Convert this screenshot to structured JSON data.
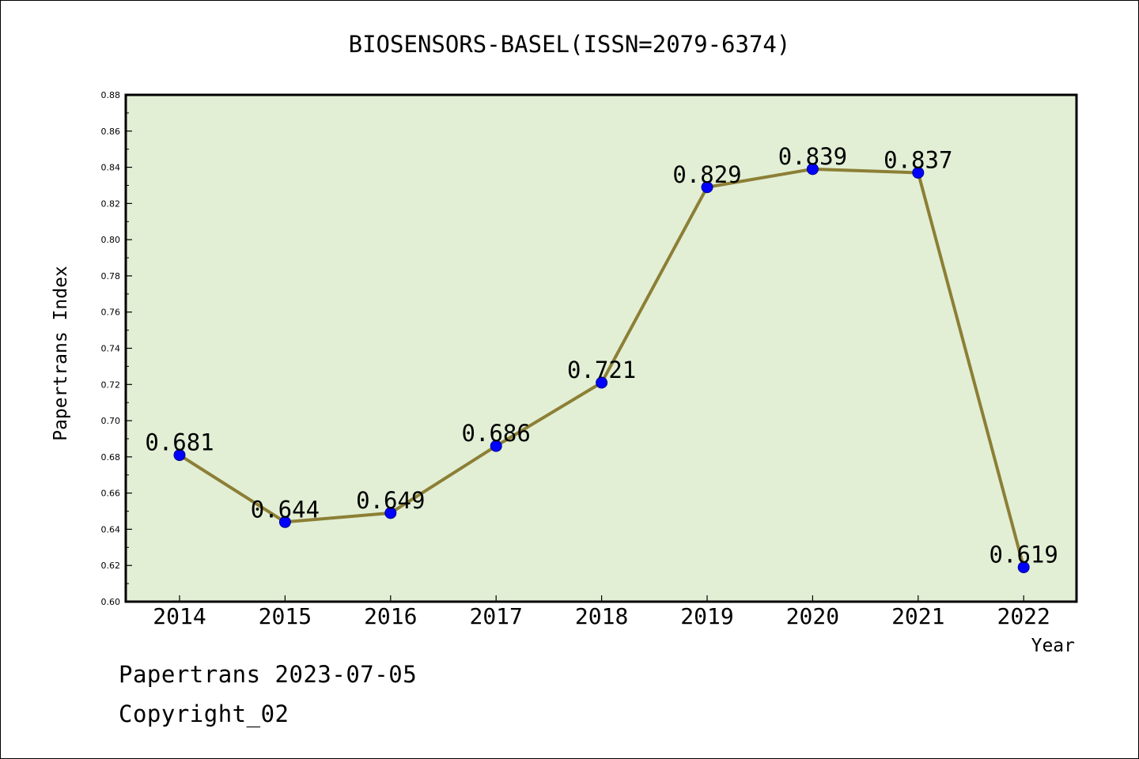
{
  "chart_data": {
    "type": "line",
    "title": "BIOSENSORS-BASEL(ISSN=2079-6374)",
    "xlabel": "Year",
    "ylabel": "Papertrans Index",
    "categories": [
      "2014",
      "2015",
      "2016",
      "2017",
      "2018",
      "2019",
      "2020",
      "2021",
      "2022"
    ],
    "values": [
      0.681,
      0.644,
      0.649,
      0.686,
      0.721,
      0.829,
      0.839,
      0.837,
      0.619
    ],
    "data_labels": [
      "0.681",
      "0.644",
      "0.649",
      "0.686",
      "0.721",
      "0.829",
      "0.839",
      "0.837",
      "0.619"
    ],
    "ylim": [
      0.6,
      0.88
    ],
    "yticks": [
      "0.60",
      "0.62",
      "0.64",
      "0.66",
      "0.68",
      "0.70",
      "0.72",
      "0.74",
      "0.76",
      "0.78",
      "0.80",
      "0.82",
      "0.84",
      "0.86",
      "0.88"
    ],
    "grid": false,
    "legend": "none",
    "colors": {
      "line": "#8c7f35",
      "marker": "#0000ff",
      "plot_background": "#e2efd5",
      "axis": "#000000"
    }
  },
  "footer": {
    "line1": "Papertrans 2023-07-05",
    "line2": "Copyright_02"
  }
}
